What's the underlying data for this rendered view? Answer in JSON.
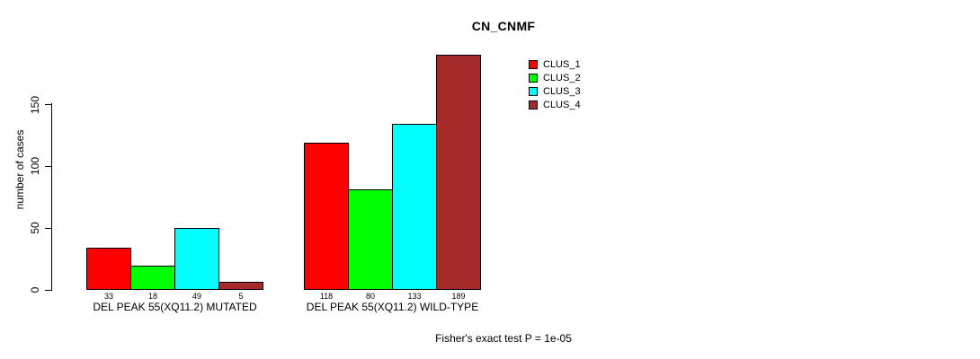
{
  "chart_data": {
    "type": "bar",
    "title": "CN_CNMF",
    "ylabel": "number of cases",
    "xlabel": "",
    "categories": [
      "DEL PEAK 55(XQ11.2) MUTATED",
      "DEL PEAK 55(XQ11.2) WILD-TYPE"
    ],
    "series": [
      {
        "name": "CLUS_1",
        "color": "#FF0000",
        "values": [
          33,
          118
        ]
      },
      {
        "name": "CLUS_2",
        "color": "#00FF00",
        "values": [
          18,
          80
        ]
      },
      {
        "name": "CLUS_3",
        "color": "#00FFFF",
        "values": [
          49,
          133
        ]
      },
      {
        "name": "CLUS_4",
        "color": "#A52A2A",
        "values": [
          5,
          189
        ]
      }
    ],
    "yticks": [
      0,
      50,
      100,
      150
    ],
    "ylim": [
      0,
      195
    ],
    "grid": false,
    "legend_position": "inside-top-center",
    "bar_value_labels": true,
    "annotation": "Fisher's exact test P = 1e-05"
  },
  "colors": {
    "background": "#FFFFFF",
    "axis": "#000000",
    "text": "#000000"
  }
}
